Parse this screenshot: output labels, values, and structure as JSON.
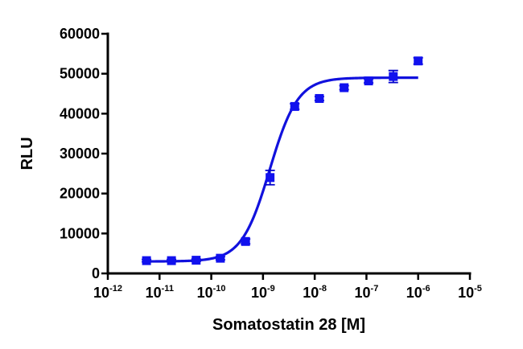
{
  "chart_data": {
    "type": "scatter",
    "xlabel": "Somatostatin 28 [M]",
    "ylabel": "RLU",
    "x_scale": "log",
    "xlim": [
      1e-12,
      1e-05
    ],
    "ylim": [
      0,
      60000
    ],
    "x_ticks": [
      {
        "value": 1e-12,
        "base": "10",
        "exp": "-12"
      },
      {
        "value": 1e-11,
        "base": "10",
        "exp": "-11"
      },
      {
        "value": 1e-10,
        "base": "10",
        "exp": "-10"
      },
      {
        "value": 1e-09,
        "base": "10",
        "exp": "-9"
      },
      {
        "value": 1e-08,
        "base": "10",
        "exp": "-8"
      },
      {
        "value": 1e-07,
        "base": "10",
        "exp": "-7"
      },
      {
        "value": 1e-06,
        "base": "10",
        "exp": "-6"
      },
      {
        "value": 1e-05,
        "base": "10",
        "exp": "-5"
      }
    ],
    "y_ticks": [
      {
        "value": 0,
        "label": "0"
      },
      {
        "value": 10000,
        "label": "10000"
      },
      {
        "value": 20000,
        "label": "20000"
      },
      {
        "value": 30000,
        "label": "30000"
      },
      {
        "value": 40000,
        "label": "40000"
      },
      {
        "value": 50000,
        "label": "50000"
      },
      {
        "value": 60000,
        "label": "60000"
      }
    ],
    "grid": false,
    "legend": "none",
    "color": "#1111ee",
    "points": [
      {
        "x": 5.6e-12,
        "y": 3200,
        "err": 300
      },
      {
        "x": 1.7e-11,
        "y": 3200,
        "err": 300
      },
      {
        "x": 5.1e-11,
        "y": 3300,
        "err": 300
      },
      {
        "x": 1.5e-10,
        "y": 3800,
        "err": 400
      },
      {
        "x": 4.6e-10,
        "y": 8000,
        "err": 600
      },
      {
        "x": 1.37e-09,
        "y": 24000,
        "err": 1800
      },
      {
        "x": 4.1e-09,
        "y": 41800,
        "err": 700
      },
      {
        "x": 1.23e-08,
        "y": 43800,
        "err": 500
      },
      {
        "x": 3.7e-08,
        "y": 46500,
        "err": 500
      },
      {
        "x": 1.1e-07,
        "y": 48200,
        "err": 500
      },
      {
        "x": 3.3e-07,
        "y": 49300,
        "err": 1500
      },
      {
        "x": 1e-06,
        "y": 53200,
        "err": 800
      }
    ],
    "fit": {
      "model": "sigmoidal dose-response",
      "bottom": 3000,
      "top": 49000,
      "ec50": 1.35e-09,
      "hill": 1.6
    }
  }
}
